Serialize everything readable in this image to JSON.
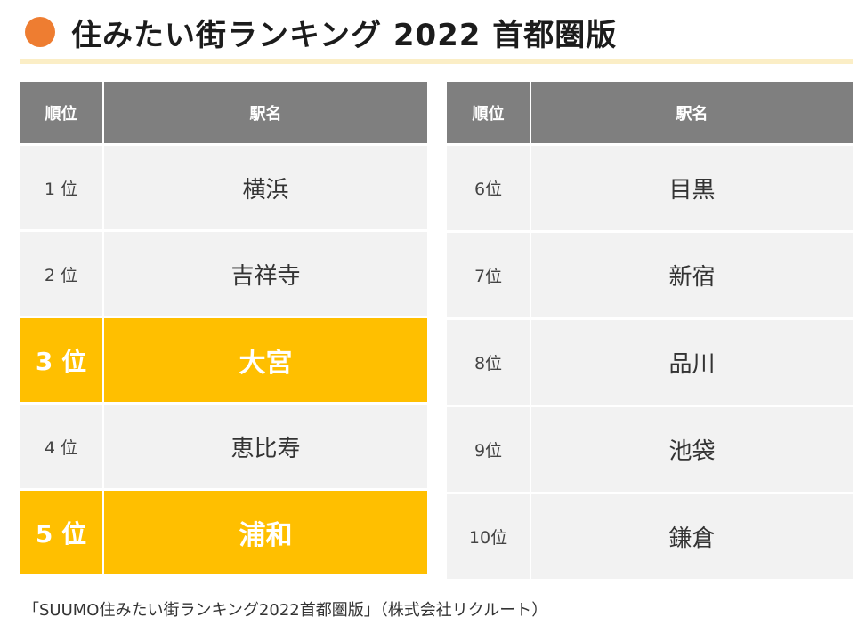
{
  "header": {
    "title": "住みたい街ランキング 2022 首都圏版",
    "icon": "orange-circle",
    "accent_color": "#ee7d31",
    "rule_color": "#fbeec6"
  },
  "colors": {
    "header_bg": "#7f7f7f",
    "row_bg": "#f2f2f2",
    "highlight_bg": "#ffbf00"
  },
  "left_table": {
    "headers": {
      "rank": "順位",
      "station": "駅名"
    },
    "rows": [
      {
        "rank": "1 位",
        "station": "横浜",
        "highlight": false
      },
      {
        "rank": "2 位",
        "station": "吉祥寺",
        "highlight": false
      },
      {
        "rank": "3 位",
        "station": "大宮",
        "highlight": true
      },
      {
        "rank": "4 位",
        "station": "恵比寿",
        "highlight": false
      },
      {
        "rank": "5 位",
        "station": "浦和",
        "highlight": true
      }
    ]
  },
  "right_table": {
    "headers": {
      "rank": "順位",
      "station": "駅名"
    },
    "rows": [
      {
        "rank": "6位",
        "station": "目黒",
        "highlight": false
      },
      {
        "rank": "7位",
        "station": "新宿",
        "highlight": false
      },
      {
        "rank": "8位",
        "station": "品川",
        "highlight": false
      },
      {
        "rank": "9位",
        "station": "池袋",
        "highlight": false
      },
      {
        "rank": "10位",
        "station": "鎌倉",
        "highlight": false
      }
    ]
  },
  "footer": {
    "source": "「SUUMO住みたい街ランキング2022首都圏版」（株式会社リクルート）"
  }
}
